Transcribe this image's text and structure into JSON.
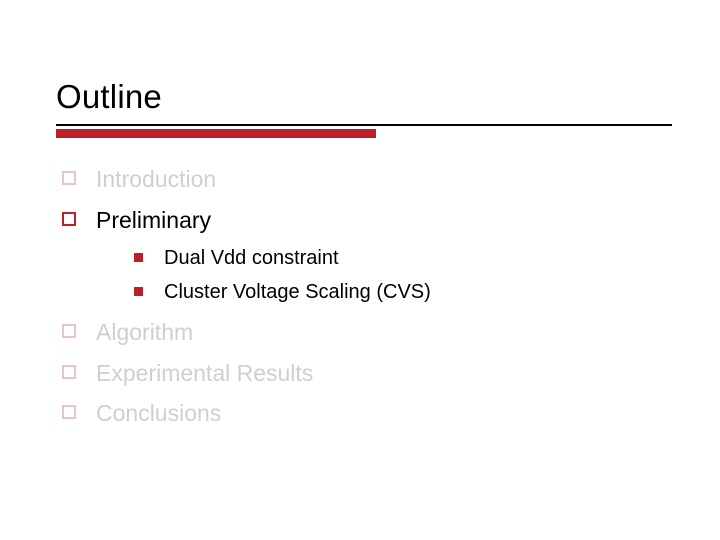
{
  "title": "Outline",
  "colors": {
    "accent": "#bd1e2c",
    "dim_text": "#cfcfcf",
    "dim_bullet": "#e9c4c8",
    "text": "#000000",
    "background": "#ffffff"
  },
  "items": [
    {
      "label": "Introduction",
      "dim": true,
      "children": []
    },
    {
      "label": "Preliminary",
      "dim": false,
      "children": [
        {
          "label": "Dual Vdd constraint"
        },
        {
          "label": "Cluster Voltage Scaling (CVS)"
        }
      ]
    },
    {
      "label": "Algorithm",
      "dim": true,
      "children": []
    },
    {
      "label": "Experimental Results",
      "dim": true,
      "children": []
    },
    {
      "label": "Conclusions",
      "dim": true,
      "children": []
    }
  ]
}
